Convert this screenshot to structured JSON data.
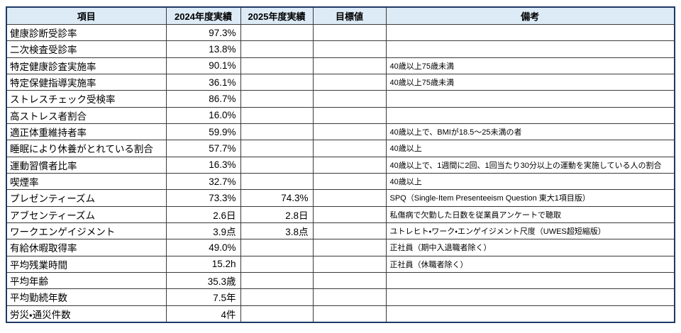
{
  "colors": {
    "header_fill": "#DDEBF7",
    "outer_border": "#1F3864",
    "grid_line": "#3A3A3A"
  },
  "table": {
    "headers": {
      "item": "項目",
      "fy2024": "2024年度実績",
      "fy2025": "2025年度実績",
      "target": "目標値",
      "remark": "備考"
    },
    "rows": [
      {
        "item": "健康診断受診率",
        "fy2024": "97.3%",
        "fy2025": "",
        "target": "",
        "remark": ""
      },
      {
        "item": "二次検査受診率",
        "fy2024": "13.8%",
        "fy2025": "",
        "target": "",
        "remark": ""
      },
      {
        "item": "特定健康診査実施率",
        "fy2024": "90.1%",
        "fy2025": "",
        "target": "",
        "remark": "40歳以上75歳未満"
      },
      {
        "item": "特定保健指導実施率",
        "fy2024": "36.1%",
        "fy2025": "",
        "target": "",
        "remark": "40歳以上75歳未満"
      },
      {
        "item": "ストレスチェック受検率",
        "fy2024": "86.7%",
        "fy2025": "",
        "target": "",
        "remark": ""
      },
      {
        "item": "高ストレス者割合",
        "fy2024": "16.0%",
        "fy2025": "",
        "target": "",
        "remark": ""
      },
      {
        "item": "適正体重維持者率",
        "fy2024": "59.9%",
        "fy2025": "",
        "target": "",
        "remark": "40歳以上で、BMIが18.5～25未満の者"
      },
      {
        "item": "睡眠により休養がとれている割合",
        "fy2024": "57.7%",
        "fy2025": "",
        "target": "",
        "remark": "40歳以上"
      },
      {
        "item": "運動習慣者比率",
        "fy2024": "16.3%",
        "fy2025": "",
        "target": "",
        "remark": "40歳以上で、1週間に2回、1回当たり30分以上の運動を実施している人の割合"
      },
      {
        "item": "喫煙率",
        "fy2024": "32.7%",
        "fy2025": "",
        "target": "",
        "remark": "40歳以上"
      },
      {
        "item": "プレゼンティーズム",
        "fy2024": "73.3%",
        "fy2025": "74.3%",
        "target": "",
        "remark": "SPQ（Single-Item Presenteeism Question 東大1項目版）"
      },
      {
        "item": "アブセンティーズム",
        "fy2024": "2.6日",
        "fy2025": "2.8日",
        "target": "",
        "remark": "私傷病で欠勤した日数を従業員アンケートで聴取"
      },
      {
        "item": "ワークエンゲイジメント",
        "fy2024": "3.9点",
        "fy2025": "3.8点",
        "target": "",
        "remark": "ユトレヒト・ワーク・エンゲイジメント尺度（UWES超短縮版）"
      },
      {
        "item": "有給休暇取得率",
        "fy2024": "49.0%",
        "fy2025": "",
        "target": "",
        "remark": "正社員（期中入退職者除く）"
      },
      {
        "item": "平均残業時間",
        "fy2024": "15.2h",
        "fy2025": "",
        "target": "",
        "remark": "正社員（休職者除く）"
      },
      {
        "item": "平均年齢",
        "fy2024": "35.3歳",
        "fy2025": "",
        "target": "",
        "remark": ""
      },
      {
        "item": "平均勤続年数",
        "fy2024": "7.5年",
        "fy2025": "",
        "target": "",
        "remark": ""
      },
      {
        "item": "労災・通災件数",
        "fy2024": "4件",
        "fy2025": "",
        "target": "",
        "remark": ""
      }
    ]
  }
}
